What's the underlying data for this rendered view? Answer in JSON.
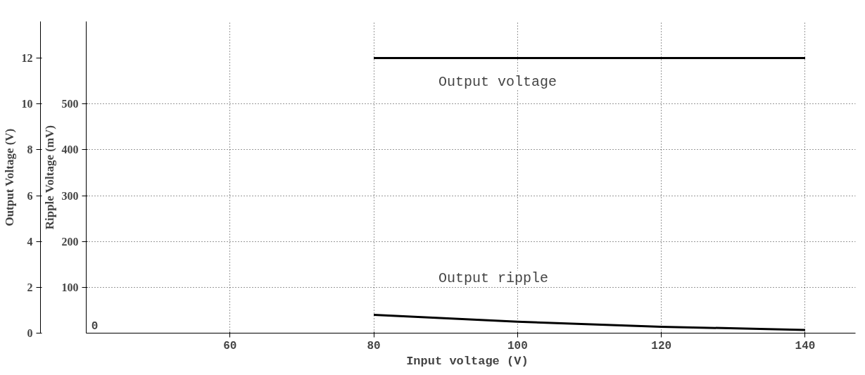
{
  "chart_data": {
    "type": "line",
    "xlabel": "Input  voltage (V)",
    "ylabel": "Output Voltage (V)",
    "y2label": "Ripple Voltage (mV)",
    "xlim": [
      40,
      147
    ],
    "xticks": [
      60,
      80,
      100,
      120,
      140
    ],
    "annotations": [
      "0"
    ],
    "ylim": [
      0,
      13.6
    ],
    "yticks": [
      0,
      2,
      4,
      6,
      8,
      10,
      12
    ],
    "y2lim": [
      0,
      680
    ],
    "y2ticks": [
      100,
      200,
      300,
      400,
      500
    ],
    "grid": true,
    "legend": false,
    "marker": "none",
    "line_style": "solid",
    "series": [
      {
        "name": "Output voltage",
        "color": "#000000",
        "x": [
          80,
          140
        ],
        "values": [
          12,
          12
        ]
      },
      {
        "name": "Output ripple",
        "color": "#000000",
        "axis": "y2",
        "x": [
          80,
          100,
          120,
          140
        ],
        "values": [
          40,
          25,
          14,
          7
        ]
      }
    ]
  }
}
